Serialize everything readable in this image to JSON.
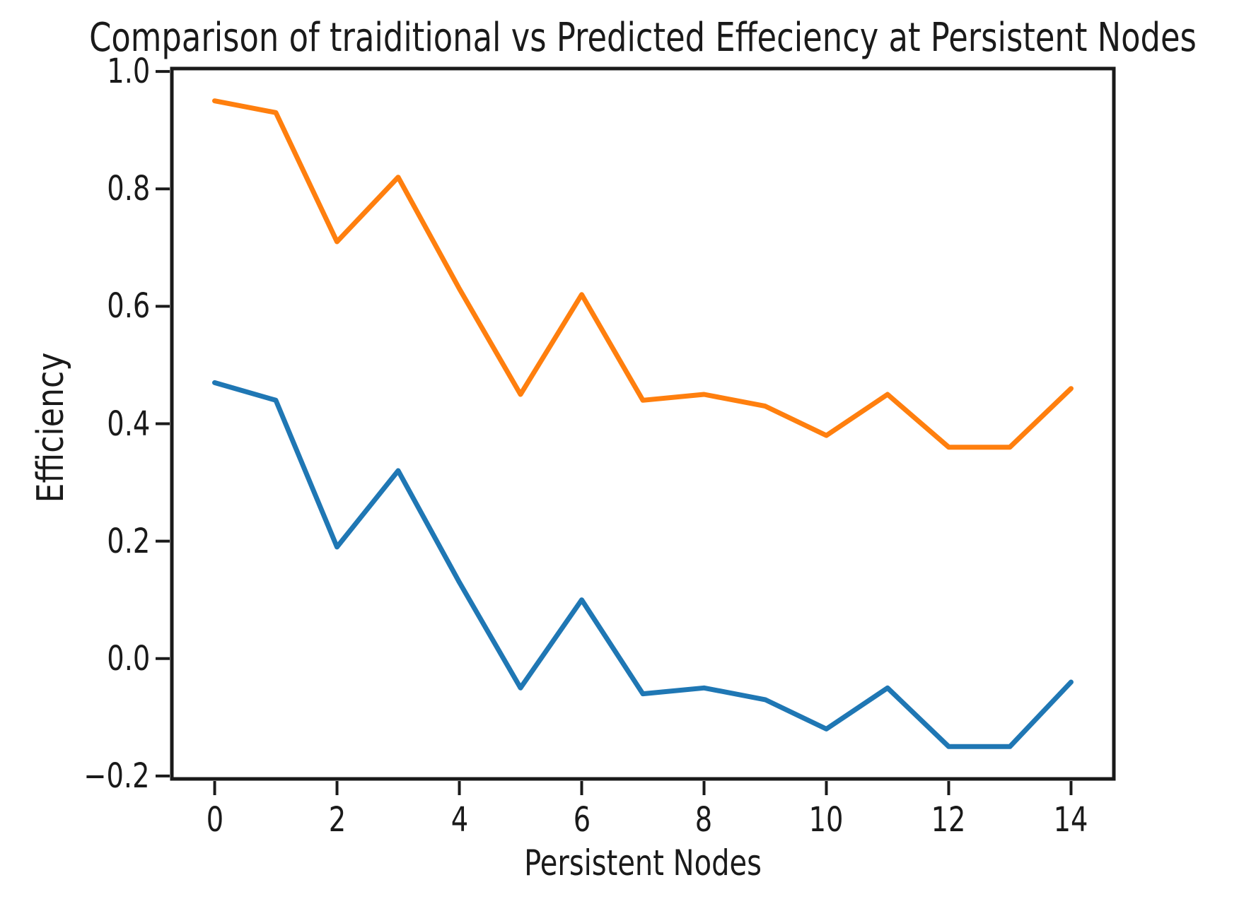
{
  "colors": {
    "background": "#ffffff",
    "axis": "#1a1a1a",
    "orange_line": "#ff7f0e",
    "blue_line": "#1f77b4"
  },
  "chart_data": {
    "type": "line",
    "title": "Comparison of traiditional vs Predicted Effeciency at Persistent Nodes",
    "xlabel": "Persistent Nodes",
    "ylabel": "Efficiency",
    "x": [
      0,
      1,
      2,
      3,
      4,
      5,
      6,
      7,
      8,
      9,
      10,
      11,
      12,
      13,
      14
    ],
    "series": [
      {
        "name": "orange-line",
        "color": "#ff7f0e",
        "values": [
          0.95,
          0.93,
          0.71,
          0.82,
          0.63,
          0.45,
          0.62,
          0.44,
          0.45,
          0.43,
          0.38,
          0.45,
          0.36,
          0.36,
          0.46
        ]
      },
      {
        "name": "blue-line",
        "color": "#1f77b4",
        "values": [
          0.47,
          0.44,
          0.19,
          0.32,
          0.13,
          -0.05,
          0.1,
          -0.06,
          -0.05,
          -0.07,
          -0.12,
          -0.05,
          -0.15,
          -0.15,
          -0.04
        ]
      }
    ],
    "xlim": [
      -0.7,
      14.7
    ],
    "ylim": [
      -0.205,
      1.005
    ],
    "xticks": [
      0,
      2,
      4,
      6,
      8,
      10,
      12,
      14
    ],
    "xtick_labels": [
      "0",
      "2",
      "4",
      "6",
      "8",
      "10",
      "12",
      "14"
    ],
    "yticks": [
      1.0,
      0.8,
      0.6,
      0.4,
      0.2,
      0.0,
      -0.2
    ],
    "ytick_labels": [
      "1.0",
      "0.8",
      "0.6",
      "0.4",
      "0.2",
      "0.0",
      "−0.2"
    ],
    "grid": false,
    "legend": "none"
  }
}
